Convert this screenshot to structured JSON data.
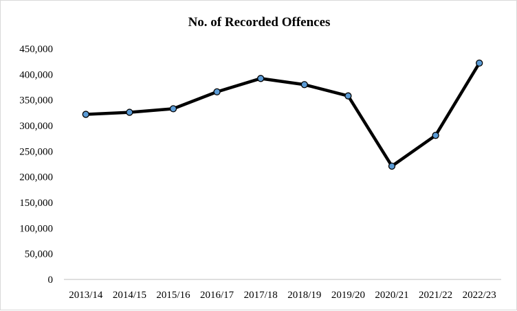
{
  "chart_data": {
    "type": "line",
    "title": "No. of Recorded Offences",
    "xlabel": "",
    "ylabel": "",
    "categories": [
      "2013/14",
      "2014/15",
      "2015/16",
      "2016/17",
      "2017/18",
      "2018/19",
      "2019/20",
      "2020/21",
      "2021/22",
      "2022/23"
    ],
    "series": [
      {
        "name": "No. of Recorded Offences",
        "values": [
          322000,
          326000,
          333000,
          366000,
          392000,
          380000,
          358000,
          221000,
          281000,
          422000
        ],
        "line_color": "#000000",
        "marker_color": "#5B9BD5"
      }
    ],
    "ylim": [
      0,
      450000
    ],
    "yticks": [
      0,
      50000,
      100000,
      150000,
      200000,
      250000,
      300000,
      350000,
      400000,
      450000
    ],
    "ytick_labels": [
      "0",
      "50,000",
      "100,000",
      "150,000",
      "200,000",
      "250,000",
      "300,000",
      "350,000",
      "400,000",
      "450,000"
    ],
    "grid": false,
    "legend": "none"
  }
}
